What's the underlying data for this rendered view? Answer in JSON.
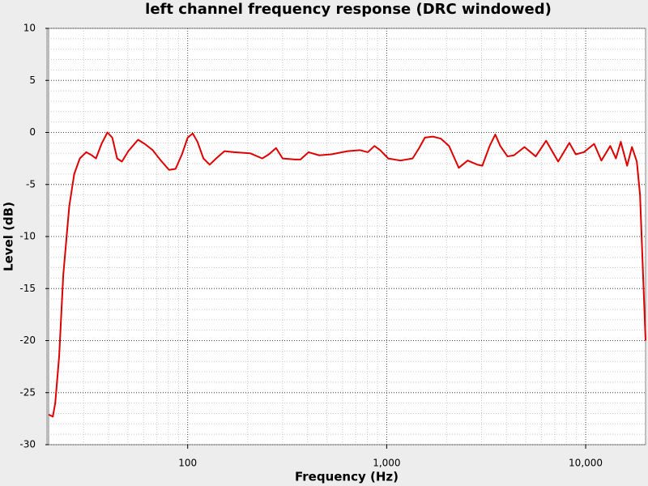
{
  "chart_data": {
    "type": "line",
    "title": "left channel frequency response (DRC windowed)",
    "x_label": "Frequency (Hz)",
    "y_label": "Level (dB)",
    "x": [
      20,
      21,
      21.6,
      22.6,
      23.7,
      25.4,
      26.9,
      28.7,
      30.9,
      33,
      34.6,
      36.9,
      39.5,
      41.8,
      44.2,
      46.7,
      50.3,
      56.3,
      60.8,
      66.7,
      73.3,
      80.6,
      86.9,
      93.6,
      100,
      106,
      112,
      120,
      129,
      139,
      153,
      171,
      206,
      237,
      256,
      278,
      300,
      346,
      369,
      405,
      458,
      528,
      636,
      733,
      804,
      868,
      927,
      1018,
      1172,
      1350,
      1456,
      1556,
      1707,
      1874,
      2057,
      2303,
      2553,
      2858,
      3024,
      3292,
      3514,
      3721,
      4047,
      4359,
      4926,
      5610,
      6327,
      7276,
      8278,
      8916,
      9785,
      11030,
      11995,
      13293,
      14189,
      15011,
      16159,
      17085,
      18075,
      18760,
      20000
    ],
    "series": [
      {
        "name": "left",
        "color": "#dd0000",
        "values": [
          -27.1,
          -27.3,
          -26.0,
          -21.5,
          -13.7,
          -7.1,
          -4.0,
          -2.5,
          -1.9,
          -2.2,
          -2.5,
          -1.1,
          0.0,
          -0.5,
          -2.5,
          -2.8,
          -1.8,
          -0.7,
          -1.1,
          -1.7,
          -2.7,
          -3.6,
          -3.5,
          -2.1,
          -0.5,
          -0.1,
          -0.9,
          -2.5,
          -3.1,
          -2.5,
          -1.8,
          -1.9,
          -2.0,
          -2.5,
          -2.1,
          -1.5,
          -2.5,
          -2.6,
          -2.6,
          -1.9,
          -2.2,
          -2.1,
          -1.8,
          -1.7,
          -1.9,
          -1.3,
          -1.7,
          -2.5,
          -2.7,
          -2.5,
          -1.5,
          -0.5,
          -0.4,
          -0.6,
          -1.3,
          -3.4,
          -2.7,
          -3.1,
          -3.2,
          -1.3,
          -0.2,
          -1.3,
          -2.3,
          -2.2,
          -1.4,
          -2.3,
          -0.8,
          -2.8,
          -1.0,
          -2.1,
          -1.9,
          -1.1,
          -2.7,
          -1.3,
          -2.5,
          -0.9,
          -3.2,
          -1.4,
          -2.8,
          -6.0,
          -20.0
        ]
      }
    ],
    "xlim": [
      20,
      20000
    ],
    "xscale": "log",
    "xticks": [
      100,
      {
        "value": 1000,
        "label": "1,000"
      },
      {
        "value": 10000,
        "label": "10,000"
      }
    ],
    "ylim": [
      -30,
      10
    ],
    "yticks": [
      -30,
      -25,
      -20,
      -15,
      -10,
      -5,
      0,
      5,
      10
    ],
    "grid": true
  }
}
